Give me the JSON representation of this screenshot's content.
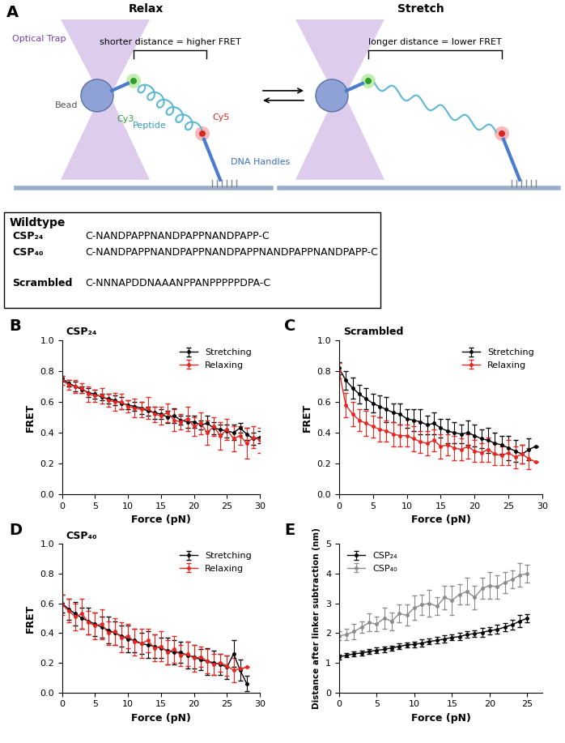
{
  "diagram": {
    "panel_label": "A",
    "relax": {
      "title": "Relax",
      "distance_label": "shorter distance = higher FRET",
      "labels": {
        "optical_trap": "Optical Trap",
        "bead": "Bead",
        "cy3": "Cy3",
        "peptide": "Peptide",
        "cy5": "Cy5",
        "dna_handles": "DNA Handles"
      }
    },
    "stretch": {
      "title": "Stretch",
      "distance_label": "longer distance = lower FRET"
    },
    "sequences": {
      "header": "Wildtype",
      "rows": [
        {
          "name": "CSP₂₄",
          "sequence": "C-NANDPAPPNANDPAPPNANDPAPP-C"
        },
        {
          "name": "CSP₄₀",
          "sequence": "C-NANDPAPPNANDPAPPNANDPAPPNANDPAPPNANDPAPP-C"
        }
      ],
      "extra": {
        "name": "Scrambled",
        "sequence": "C-NNNAPDDNAAANPPANPPPPPDPA-C"
      }
    }
  },
  "chart_data": [
    {
      "type": "line",
      "panel_label": "B",
      "annotation": "CSP₂₄",
      "x_label": "Force (pN)",
      "y_label": "FRET",
      "xlim": [
        0,
        30
      ],
      "xticks": [
        0,
        5,
        10,
        15,
        20,
        25,
        30
      ],
      "ylim": [
        0,
        1.0
      ],
      "yticks": [
        {
          "value": 0,
          "label": "0.0"
        },
        0.2,
        0.4,
        0.6,
        0.8,
        {
          "value": 1.0,
          "label": "1.0"
        }
      ],
      "legend": "upper right",
      "marker": "o",
      "series": [
        {
          "name": "Stretching",
          "color": "#000000",
          "x": [
            0,
            1,
            2,
            3,
            4,
            5,
            6,
            7,
            8,
            9,
            10,
            11,
            12,
            13,
            14,
            15,
            16,
            17,
            18,
            19,
            20,
            21,
            22,
            23,
            24,
            25,
            26,
            27,
            28,
            29,
            30
          ],
          "values": [
            0.75,
            0.72,
            0.7,
            0.68,
            0.66,
            0.65,
            0.63,
            0.62,
            0.61,
            0.59,
            0.58,
            0.57,
            0.56,
            0.54,
            0.53,
            0.52,
            0.5,
            0.51,
            0.48,
            0.47,
            0.47,
            0.45,
            0.46,
            0.43,
            0.42,
            0.41,
            0.4,
            0.43,
            0.39,
            0.36,
            0.37
          ],
          "errors": [
            0.02,
            0.02,
            0.03,
            0.02,
            0.03,
            0.03,
            0.02,
            0.03,
            0.03,
            0.04,
            0.03,
            0.03,
            0.04,
            0.03,
            0.04,
            0.03,
            0.04,
            0.05,
            0.03,
            0.04,
            0.04,
            0.03,
            0.05,
            0.04,
            0.03,
            0.04,
            0.05,
            0.03,
            0.04,
            0.04,
            0.04
          ]
        },
        {
          "name": "Relaxing",
          "color": "#e8251e",
          "x": [
            0,
            1,
            2,
            3,
            4,
            5,
            6,
            7,
            8,
            9,
            10,
            11,
            12,
            13,
            14,
            15,
            16,
            17,
            18,
            19,
            20,
            21,
            22,
            23,
            24,
            25,
            26,
            27,
            28,
            29,
            30
          ],
          "values": [
            0.74,
            0.71,
            0.7,
            0.69,
            0.65,
            0.64,
            0.64,
            0.61,
            0.6,
            0.6,
            0.57,
            0.56,
            0.55,
            0.56,
            0.52,
            0.51,
            0.53,
            0.48,
            0.47,
            0.49,
            0.44,
            0.46,
            0.4,
            0.44,
            0.38,
            0.42,
            0.36,
            0.38,
            0.33,
            0.37,
            0.35
          ],
          "errors": [
            0.03,
            0.03,
            0.04,
            0.03,
            0.05,
            0.04,
            0.05,
            0.04,
            0.06,
            0.05,
            0.04,
            0.06,
            0.05,
            0.07,
            0.05,
            0.06,
            0.06,
            0.07,
            0.05,
            0.08,
            0.06,
            0.07,
            0.08,
            0.06,
            0.09,
            0.07,
            0.08,
            0.06,
            0.1,
            0.07,
            0.08
          ]
        }
      ]
    },
    {
      "type": "line",
      "panel_label": "C",
      "annotation": "Scrambled",
      "x_label": "Force (pN)",
      "y_label": "FRET",
      "xlim": [
        0,
        30
      ],
      "xticks": [
        0,
        5,
        10,
        15,
        20,
        25,
        30
      ],
      "ylim": [
        0,
        1.0
      ],
      "yticks": [
        {
          "value": 0,
          "label": "0.0"
        },
        0.2,
        0.4,
        0.6,
        0.8,
        {
          "value": 1.0,
          "label": "1.0"
        }
      ],
      "legend": "upper right",
      "marker": "o",
      "series": [
        {
          "name": "Stretching",
          "color": "#000000",
          "x": [
            0,
            1,
            2,
            3,
            4,
            5,
            6,
            7,
            8,
            9,
            10,
            11,
            12,
            13,
            14,
            15,
            16,
            17,
            18,
            19,
            20,
            21,
            22,
            23,
            24,
            25,
            26,
            27,
            28,
            29
          ],
          "values": [
            0.82,
            0.74,
            0.69,
            0.65,
            0.62,
            0.59,
            0.57,
            0.55,
            0.53,
            0.52,
            0.49,
            0.48,
            0.47,
            0.45,
            0.46,
            0.43,
            0.41,
            0.4,
            0.39,
            0.4,
            0.38,
            0.36,
            0.35,
            0.33,
            0.32,
            0.3,
            0.28,
            0.26,
            0.29,
            0.31
          ],
          "errors": [
            0.04,
            0.06,
            0.07,
            0.06,
            0.07,
            0.06,
            0.07,
            0.08,
            0.06,
            0.07,
            0.06,
            0.07,
            0.08,
            0.06,
            0.07,
            0.06,
            0.08,
            0.07,
            0.06,
            0.08,
            0.07,
            0.06,
            0.08,
            0.07,
            0.06,
            0.08,
            0.07,
            0.06,
            0.07,
            0
          ]
        },
        {
          "name": "Relaxing",
          "color": "#e8251e",
          "x": [
            0,
            1,
            2,
            3,
            4,
            5,
            6,
            7,
            8,
            9,
            10,
            11,
            12,
            13,
            14,
            15,
            16,
            17,
            18,
            19,
            20,
            21,
            22,
            23,
            24,
            25,
            26,
            27,
            28,
            29
          ],
          "values": [
            0.8,
            0.58,
            0.52,
            0.48,
            0.46,
            0.44,
            0.42,
            0.41,
            0.39,
            0.38,
            0.38,
            0.36,
            0.34,
            0.33,
            0.35,
            0.31,
            0.32,
            0.3,
            0.29,
            0.31,
            0.28,
            0.27,
            0.29,
            0.26,
            0.25,
            0.27,
            0.24,
            0.26,
            0.23,
            0.21
          ],
          "errors": [
            0.05,
            0.08,
            0.08,
            0.07,
            0.08,
            0.07,
            0.08,
            0.07,
            0.08,
            0.07,
            0.07,
            0.08,
            0.07,
            0.08,
            0.07,
            0.08,
            0.07,
            0.08,
            0.07,
            0.08,
            0.07,
            0.06,
            0.08,
            0.07,
            0.06,
            0.08,
            0.07,
            0.06,
            0.07,
            0
          ]
        }
      ]
    },
    {
      "type": "line",
      "panel_label": "D",
      "annotation": "CSP₄₀",
      "x_label": "Force (pN)",
      "y_label": "FRET",
      "xlim": [
        0,
        30
      ],
      "xticks": [
        0,
        5,
        10,
        15,
        20,
        25,
        30
      ],
      "ylim": [
        0,
        1.0
      ],
      "yticks": [
        {
          "value": 0,
          "label": "0.0"
        },
        0.2,
        0.4,
        0.6,
        0.8,
        {
          "value": 1.0,
          "label": "1.0"
        }
      ],
      "legend": "upper right",
      "marker": "o",
      "series": [
        {
          "name": "Stretching",
          "color": "#000000",
          "x": [
            0,
            1,
            2,
            3,
            4,
            5,
            6,
            7,
            8,
            9,
            10,
            11,
            12,
            13,
            14,
            15,
            16,
            17,
            18,
            19,
            20,
            21,
            22,
            23,
            24,
            25,
            26,
            27,
            28
          ],
          "values": [
            0.6,
            0.56,
            0.53,
            0.5,
            0.48,
            0.46,
            0.44,
            0.42,
            0.4,
            0.38,
            0.36,
            0.35,
            0.33,
            0.32,
            0.31,
            0.3,
            0.28,
            0.27,
            0.27,
            0.25,
            0.24,
            0.22,
            0.21,
            0.2,
            0.19,
            0.17,
            0.26,
            0.15,
            0.06
          ],
          "errors": [
            0.06,
            0.07,
            0.08,
            0.07,
            0.09,
            0.08,
            0.07,
            0.09,
            0.08,
            0.07,
            0.09,
            0.08,
            0.07,
            0.09,
            0.08,
            0.07,
            0.09,
            0.08,
            0.07,
            0.09,
            0.08,
            0.07,
            0.09,
            0.08,
            0.07,
            0.08,
            0.09,
            0.07,
            0.05
          ]
        },
        {
          "name": "Relaxing",
          "color": "#e8251e",
          "x": [
            0,
            1,
            2,
            3,
            4,
            5,
            6,
            7,
            8,
            9,
            10,
            11,
            12,
            13,
            14,
            15,
            16,
            17,
            18,
            19,
            20,
            21,
            22,
            23,
            24,
            25,
            26,
            27,
            28
          ],
          "values": [
            0.59,
            0.55,
            0.51,
            0.53,
            0.47,
            0.45,
            0.46,
            0.4,
            0.41,
            0.37,
            0.38,
            0.34,
            0.33,
            0.35,
            0.3,
            0.31,
            0.27,
            0.29,
            0.25,
            0.26,
            0.23,
            0.24,
            0.21,
            0.19,
            0.2,
            0.18,
            0.15,
            0.16,
            0.17
          ],
          "errors": [
            0.07,
            0.08,
            0.09,
            0.1,
            0.08,
            0.09,
            0.1,
            0.08,
            0.09,
            0.1,
            0.08,
            0.09,
            0.1,
            0.08,
            0.09,
            0.1,
            0.08,
            0.09,
            0.07,
            0.08,
            0.09,
            0.07,
            0.08,
            0.07,
            0.06,
            0.07,
            0.08,
            0,
            0
          ]
        }
      ]
    },
    {
      "type": "line",
      "panel_label": "E",
      "x_label": "Force (pN)",
      "y_label": "Distance after linker subtraction (nm)",
      "xlim": [
        0,
        27
      ],
      "xticks": [
        0,
        5,
        10,
        15,
        20,
        25
      ],
      "ylim": [
        0,
        5
      ],
      "yticks": [
        0,
        1,
        2,
        3,
        4,
        5
      ],
      "legend": "upper left",
      "marker": "o",
      "series": [
        {
          "name": "CSP₂₄",
          "color": "#000000",
          "x": [
            0,
            1,
            2,
            3,
            4,
            5,
            6,
            7,
            8,
            9,
            10,
            11,
            12,
            13,
            14,
            15,
            16,
            17,
            18,
            19,
            20,
            21,
            22,
            23,
            24,
            25
          ],
          "values": [
            1.2,
            1.25,
            1.3,
            1.33,
            1.38,
            1.42,
            1.45,
            1.5,
            1.55,
            1.6,
            1.62,
            1.66,
            1.72,
            1.75,
            1.8,
            1.85,
            1.88,
            1.95,
            1.98,
            2.02,
            2.08,
            2.12,
            2.2,
            2.28,
            2.4,
            2.5
          ],
          "errors": [
            0.08,
            0.07,
            0.08,
            0.09,
            0.08,
            0.1,
            0.09,
            0.08,
            0.1,
            0.09,
            0.1,
            0.12,
            0.1,
            0.11,
            0.12,
            0.1,
            0.13,
            0.11,
            0.12,
            0.14,
            0.12,
            0.15,
            0.13,
            0.16,
            0.2,
            0.14
          ]
        },
        {
          "name": "CSP₄₀",
          "color": "#8c8c8c",
          "x": [
            0,
            1,
            2,
            3,
            4,
            5,
            6,
            7,
            8,
            9,
            10,
            11,
            12,
            13,
            14,
            15,
            16,
            17,
            18,
            19,
            20,
            21,
            22,
            23,
            24,
            25
          ],
          "values": [
            1.9,
            1.95,
            2.05,
            2.2,
            2.35,
            2.3,
            2.5,
            2.4,
            2.65,
            2.6,
            2.85,
            2.95,
            3.0,
            2.9,
            3.2,
            3.1,
            3.3,
            3.4,
            3.2,
            3.5,
            3.6,
            3.55,
            3.7,
            3.8,
            3.95,
            4.0
          ],
          "errors": [
            0.15,
            0.2,
            0.25,
            0.2,
            0.3,
            0.25,
            0.35,
            0.3,
            0.3,
            0.35,
            0.4,
            0.35,
            0.45,
            0.3,
            0.4,
            0.5,
            0.35,
            0.45,
            0.4,
            0.35,
            0.45,
            0.4,
            0.35,
            0.3,
            0.4,
            0.3
          ]
        }
      ]
    }
  ]
}
